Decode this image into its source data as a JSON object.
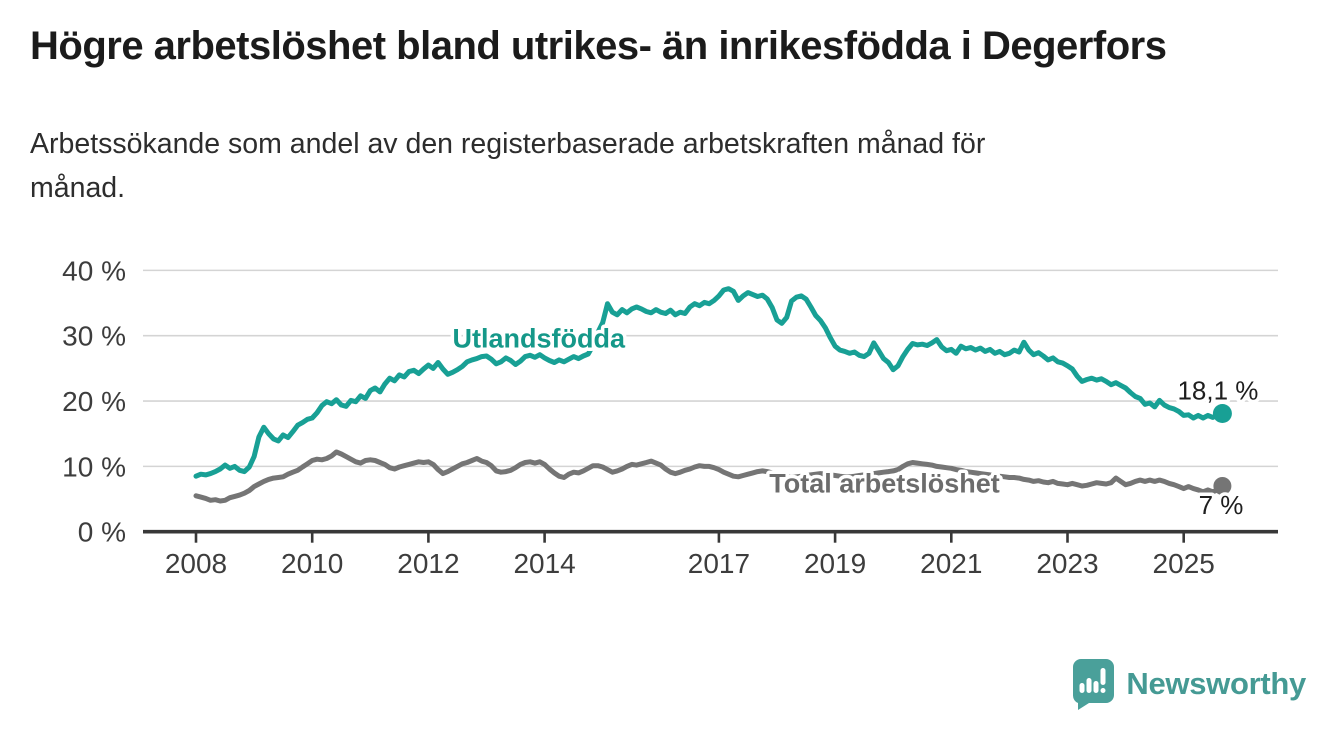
{
  "header": {
    "title": "Högre arbetslöshet bland utrikes- än inrikesfödda i Degerfors",
    "subtitle": "Arbetssökande som andel av den registerbaserade arbetskraften månad för månad."
  },
  "chart_data": {
    "type": "line",
    "title": "Högre arbetslöshet bland utrikes- än inrikesfödda i Degerfors",
    "subtitle": "Arbetssökande som andel av den registerbaserade arbetskraften månad för månad.",
    "grid": true,
    "legend_position": "inline-labels",
    "x_start_year": 2008,
    "x_step_months": 1,
    "x_axis": {
      "ticks": [
        2008,
        2010,
        2012,
        2014,
        2017,
        2019,
        2021,
        2023,
        2025
      ]
    },
    "y_axis": {
      "ticks": [
        0,
        10,
        20,
        30,
        40
      ],
      "tick_suffix": " %",
      "range": [
        0,
        40
      ]
    },
    "series": [
      {
        "name": "Utlandsfödda",
        "color": "#18a095",
        "label_color": "#159889",
        "end_label": "18,1 %",
        "end_label_position": "above",
        "end_dot_r": 9.5,
        "name_label": {
          "year": 2013.9,
          "pct": 28.2
        },
        "values": [
          8.5,
          8.8,
          8.7,
          8.9,
          9.2,
          9.6,
          10.2,
          9.7,
          10,
          9.4,
          9.2,
          9.9,
          11.5,
          14.5,
          16,
          15,
          14.2,
          13.9,
          14.8,
          14.4,
          15.3,
          16.3,
          16.7,
          17.2,
          17.4,
          18.2,
          19.3,
          19.9,
          19.6,
          20.2,
          19.4,
          19.2,
          20.1,
          19.9,
          20.8,
          20.4,
          21.6,
          22,
          21.4,
          22.6,
          23.5,
          23.1,
          24,
          23.7,
          24.5,
          24.7,
          24.2,
          24.9,
          25.5,
          25,
          25.9,
          24.9,
          24.1,
          24.4,
          24.8,
          25.3,
          26,
          26.3,
          26.5,
          26.8,
          26.9,
          26.4,
          25.7,
          26,
          26.6,
          26.2,
          25.6,
          26.1,
          26.8,
          27,
          26.7,
          27.1,
          26.6,
          26.2,
          25.9,
          26.3,
          26,
          26.4,
          26.8,
          26.5,
          26.9,
          27.2,
          28.5,
          30.5,
          32,
          34.9,
          33.6,
          33.2,
          34,
          33.5,
          34.1,
          34.4,
          34.1,
          33.7,
          33.5,
          34,
          33.6,
          33.4,
          33.9,
          33.2,
          33.6,
          33.4,
          34.4,
          34.9,
          34.6,
          35.1,
          34.9,
          35.4,
          36.1,
          37,
          37.2,
          36.8,
          35.4,
          36.1,
          36.6,
          36.3,
          36,
          36.2,
          35.6,
          34.3,
          32.4,
          31.9,
          32.8,
          35.3,
          35.9,
          36.1,
          35.6,
          34.4,
          33.1,
          32.3,
          31.2,
          29.7,
          28.4,
          27.8,
          27.6,
          27.3,
          27.5,
          27,
          26.8,
          27.3,
          28.9,
          27.7,
          26.5,
          25.9,
          24.8,
          25.4,
          26.8,
          27.9,
          28.8,
          28.6,
          28.7,
          28.5,
          28.9,
          29.4,
          28.3,
          27.7,
          27.9,
          27.3,
          28.4,
          28,
          28.2,
          27.8,
          28.1,
          27.6,
          27.9,
          27.3,
          27.6,
          27.1,
          27.3,
          27.8,
          27.5,
          29,
          27.8,
          27.1,
          27.4,
          26.9,
          26.3,
          26.6,
          26,
          25.8,
          25.4,
          24.9,
          23.8,
          23,
          23.3,
          23.5,
          23.2,
          23.4,
          23,
          22.5,
          22.8,
          22.4,
          22,
          21.3,
          20.7,
          20.4,
          19.5,
          19.7,
          19.1,
          20.1,
          19.4,
          19,
          18.8,
          18.4,
          17.8,
          17.9,
          17.4,
          17.8,
          17.4,
          17.8,
          17.5,
          17.9,
          18.1
        ]
      },
      {
        "name": "Total arbetslöshet",
        "color": "#757575",
        "label_color": "#6c6c6c",
        "end_label": "7 %",
        "end_label_position": "below",
        "end_dot_r": 9,
        "name_label": {
          "year": 2019.85,
          "pct": 6.0
        },
        "values": [
          5.5,
          5.3,
          5.1,
          4.8,
          4.9,
          4.7,
          4.8,
          5.2,
          5.4,
          5.6,
          5.9,
          6.3,
          6.9,
          7.3,
          7.7,
          8,
          8.2,
          8.3,
          8.4,
          8.8,
          9.1,
          9.4,
          9.9,
          10.4,
          10.9,
          11.1,
          11,
          11.2,
          11.6,
          12.2,
          11.9,
          11.5,
          11.1,
          10.7,
          10.5,
          10.9,
          11,
          10.9,
          10.6,
          10.3,
          9.8,
          9.6,
          9.9,
          10.1,
          10.3,
          10.5,
          10.7,
          10.6,
          10.7,
          10.3,
          9.5,
          8.9,
          9.2,
          9.6,
          10,
          10.4,
          10.6,
          10.9,
          11.2,
          10.8,
          10.6,
          10.1,
          9.3,
          9.1,
          9.2,
          9.4,
          9.8,
          10.3,
          10.6,
          10.7,
          10.5,
          10.7,
          10.3,
          9.6,
          9,
          8.5,
          8.3,
          8.8,
          9.1,
          9,
          9.3,
          9.7,
          10.1,
          10.1,
          9.9,
          9.5,
          9.1,
          9.3,
          9.6,
          10,
          10.3,
          10.2,
          10.4,
          10.6,
          10.8,
          10.5,
          10.2,
          9.6,
          9.1,
          8.9,
          9.1,
          9.4,
          9.6,
          9.9,
          10.1,
          10,
          10,
          9.8,
          9.5,
          9.1,
          8.8,
          8.5,
          8.4,
          8.6,
          8.8,
          9,
          9.2,
          9.3,
          9.2,
          9,
          8.8,
          8.6,
          8.4,
          8.3,
          8.4,
          8.5,
          8.6,
          8.7,
          8.8,
          8.9,
          8.8,
          8.7,
          8.6,
          8.5,
          8.4,
          8.4,
          8.5,
          8.6,
          8.7,
          8.8,
          8.9,
          9,
          9.1,
          9.2,
          9.3,
          9.5,
          10,
          10.4,
          10.6,
          10.5,
          10.4,
          10.3,
          10.2,
          10,
          9.9,
          9.8,
          9.7,
          9.5,
          9.4,
          9.2,
          9.1,
          9,
          8.9,
          8.8,
          8.7,
          8.6,
          8.5,
          8.4,
          8.3,
          8.3,
          8.2,
          8,
          7.9,
          7.7,
          7.8,
          7.6,
          7.5,
          7.7,
          7.4,
          7.3,
          7.2,
          7.4,
          7.2,
          7,
          7.1,
          7.3,
          7.5,
          7.4,
          7.3,
          7.5,
          8.2,
          7.7,
          7.2,
          7.4,
          7.7,
          7.9,
          7.7,
          7.9,
          7.7,
          7.9,
          7.7,
          7.4,
          7.2,
          6.9,
          6.6,
          6.9,
          6.6,
          6.4,
          6.1,
          6.4,
          6.1,
          6.4,
          7
        ]
      }
    ]
  },
  "branding": {
    "text": "Newsworthy",
    "color": "#459a94",
    "logo_icon": "newsworthy-speech-bubble-bar-chart-icon"
  }
}
